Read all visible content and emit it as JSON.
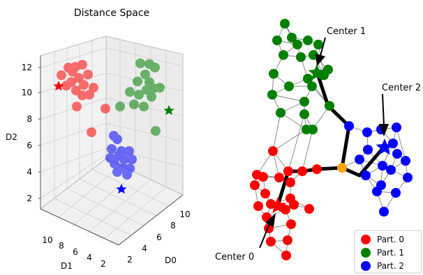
{
  "left_panel": {
    "title": "Distance Space",
    "axis_labels": {
      "d0": "D0",
      "d1": "D1",
      "d2": "D2"
    },
    "d2_ticks": [
      "12",
      "10",
      "8",
      "6",
      "4",
      "2"
    ],
    "d1_ticks": [
      "10",
      "8",
      "6",
      "4",
      "2"
    ],
    "d0_ticks": [
      "2",
      "4",
      "6",
      "8",
      "10"
    ]
  },
  "right_panel": {
    "callouts": {
      "center0": "Center 0",
      "center1": "Center 1",
      "center2": "Center 2"
    },
    "legend": [
      {
        "label": "Part. 0",
        "color": "#ff0000"
      },
      {
        "label": "Part. 1",
        "color": "#008000"
      },
      {
        "label": "Part. 2",
        "color": "#0000ff"
      }
    ],
    "connector_color": "#ffa500"
  },
  "chart_data": {
    "type": "scatter",
    "series": [
      {
        "color": "#ff0000",
        "center_marker": "star"
      },
      {
        "color": "#008000",
        "center_marker": "star"
      },
      {
        "color": "#0000ff",
        "center_marker": "star"
      }
    ]
  }
}
